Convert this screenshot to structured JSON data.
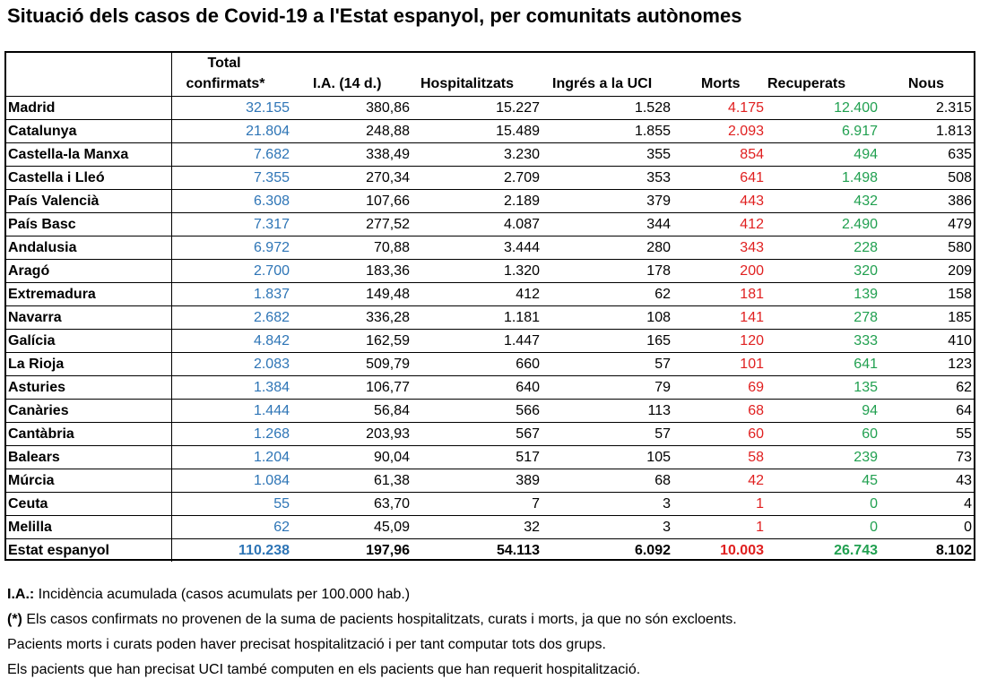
{
  "title": "Situació dels casos de Covid-19 a l'Estat espanyol, per comunitats autònomes",
  "headers": {
    "region": "",
    "total_line1": "Total",
    "total_line2": "confirmats*",
    "ia": "I.A. (14 d.)",
    "hosp": "Hospitalitzats",
    "uci": "Ingrés a la UCI",
    "morts": "Morts",
    "recup": "Recuperats",
    "nous": "Nous"
  },
  "rows": [
    {
      "region": "Madrid",
      "total": "32.155",
      "ia": "380,86",
      "hosp": "15.227",
      "uci": "1.528",
      "morts": "4.175",
      "recup": "12.400",
      "nous": "2.315"
    },
    {
      "region": "Catalunya",
      "total": "21.804",
      "ia": "248,88",
      "hosp": "15.489",
      "uci": "1.855",
      "morts": "2.093",
      "recup": "6.917",
      "nous": "1.813"
    },
    {
      "region": "Castella-la Manxa",
      "total": "7.682",
      "ia": "338,49",
      "hosp": "3.230",
      "uci": "355",
      "morts": "854",
      "recup": "494",
      "nous": "635"
    },
    {
      "region": "Castella i Lleó",
      "total": "7.355",
      "ia": "270,34",
      "hosp": "2.709",
      "uci": "353",
      "morts": "641",
      "recup": "1.498",
      "nous": "508"
    },
    {
      "region": "País Valencià",
      "total": "6.308",
      "ia": "107,66",
      "hosp": "2.189",
      "uci": "379",
      "morts": "443",
      "recup": "432",
      "nous": "386"
    },
    {
      "region": "País Basc",
      "total": "7.317",
      "ia": "277,52",
      "hosp": "4.087",
      "uci": "344",
      "morts": "412",
      "recup": "2.490",
      "nous": "479"
    },
    {
      "region": "Andalusia",
      "total": "6.972",
      "ia": "70,88",
      "hosp": "3.444",
      "uci": "280",
      "morts": "343",
      "recup": "228",
      "nous": "580"
    },
    {
      "region": "Aragó",
      "total": "2.700",
      "ia": "183,36",
      "hosp": "1.320",
      "uci": "178",
      "morts": "200",
      "recup": "320",
      "nous": "209"
    },
    {
      "region": "Extremadura",
      "total": "1.837",
      "ia": "149,48",
      "hosp": "412",
      "uci": "62",
      "morts": "181",
      "recup": "139",
      "nous": "158"
    },
    {
      "region": "Navarra",
      "total": "2.682",
      "ia": "336,28",
      "hosp": "1.181",
      "uci": "108",
      "morts": "141",
      "recup": "278",
      "nous": "185"
    },
    {
      "region": "Galícia",
      "total": "4.842",
      "ia": "162,59",
      "hosp": "1.447",
      "uci": "165",
      "morts": "120",
      "recup": "333",
      "nous": "410"
    },
    {
      "region": "La Rioja",
      "total": "2.083",
      "ia": "509,79",
      "hosp": "660",
      "uci": "57",
      "morts": "101",
      "recup": "641",
      "nous": "123"
    },
    {
      "region": "Asturies",
      "total": "1.384",
      "ia": "106,77",
      "hosp": "640",
      "uci": "79",
      "morts": "69",
      "recup": "135",
      "nous": "62"
    },
    {
      "region": "Canàries",
      "total": "1.444",
      "ia": "56,84",
      "hosp": "566",
      "uci": "113",
      "morts": "68",
      "recup": "94",
      "nous": "64"
    },
    {
      "region": "Cantàbria",
      "total": "1.268",
      "ia": "203,93",
      "hosp": "567",
      "uci": "57",
      "morts": "60",
      "recup": "60",
      "nous": "55"
    },
    {
      "region": "Balears",
      "total": "1.204",
      "ia": "90,04",
      "hosp": "517",
      "uci": "105",
      "morts": "58",
      "recup": "239",
      "nous": "73"
    },
    {
      "region": "Múrcia",
      "total": "1.084",
      "ia": "61,38",
      "hosp": "389",
      "uci": "68",
      "morts": "42",
      "recup": "45",
      "nous": "43"
    },
    {
      "region": "Ceuta",
      "total": "55",
      "ia": "63,70",
      "hosp": "7",
      "uci": "3",
      "morts": "1",
      "recup": "0",
      "nous": "4"
    },
    {
      "region": "Melilla",
      "total": "62",
      "ia": "45,09",
      "hosp": "32",
      "uci": "3",
      "morts": "1",
      "recup": "0",
      "nous": "0"
    }
  ],
  "total_row": {
    "region": "Estat espanyol",
    "total": "110.238",
    "ia": "197,96",
    "hosp": "54.113",
    "uci": "6.092",
    "morts": "10.003",
    "recup": "26.743",
    "nous": "8.102"
  },
  "notes": {
    "ia_label": "I.A.:",
    "ia_text": " Incidència acumulada (casos acumulats per 100.000 hab.)",
    "star_label": "(*)",
    "star_text": " Els casos confirmats no provenen de la suma de pacients hospitalitzats, curats i morts, ja que no són excloents.",
    "line3": "Pacients morts i curats poden haver precisat hospitalització i per tant computar tots dos grups.",
    "line4": "Els pacients que han precisat UCI també computen en els pacients que han requerit hospitalització."
  },
  "colors": {
    "total": "#2e75b6",
    "morts": "#e02020",
    "recup": "#21a050"
  }
}
